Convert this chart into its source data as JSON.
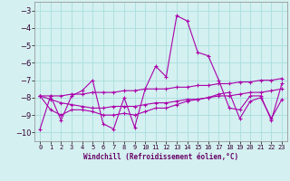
{
  "xlabel": "Windchill (Refroidissement éolien,°C)",
  "background_color": "#d4f0f0",
  "grid_color": "#aadddd",
  "line_color": "#aa00aa",
  "ylim": [
    -10.5,
    -2.5
  ],
  "xlim": [
    -0.5,
    23.5
  ],
  "yticks": [
    -10,
    -9,
    -8,
    -7,
    -6,
    -5,
    -4,
    -3
  ],
  "xticks": [
    0,
    1,
    2,
    3,
    4,
    5,
    6,
    7,
    8,
    9,
    10,
    11,
    12,
    13,
    14,
    15,
    16,
    17,
    18,
    19,
    20,
    21,
    22,
    23
  ],
  "line1": [
    -9.8,
    -7.9,
    -9.3,
    -7.9,
    -7.6,
    -7.0,
    -9.5,
    -9.8,
    -8.0,
    -9.7,
    -7.5,
    -6.2,
    -6.8,
    -3.3,
    -3.6,
    -5.4,
    -5.6,
    -7.0,
    -8.6,
    -8.7,
    -7.9,
    -7.9,
    -9.3,
    -7.2
  ],
  "line2": [
    -7.9,
    -7.9,
    -7.9,
    -7.8,
    -7.8,
    -7.7,
    -7.7,
    -7.7,
    -7.6,
    -7.6,
    -7.5,
    -7.5,
    -7.5,
    -7.4,
    -7.4,
    -7.3,
    -7.3,
    -7.2,
    -7.2,
    -7.1,
    -7.1,
    -7.0,
    -7.0,
    -6.9
  ],
  "line3": [
    -7.9,
    -8.1,
    -8.3,
    -8.4,
    -8.5,
    -8.6,
    -8.6,
    -8.5,
    -8.5,
    -8.5,
    -8.4,
    -8.3,
    -8.3,
    -8.2,
    -8.1,
    -8.1,
    -8.0,
    -7.9,
    -7.9,
    -7.8,
    -7.7,
    -7.7,
    -7.6,
    -7.5
  ],
  "line4": [
    -7.9,
    -8.7,
    -9.0,
    -8.7,
    -8.7,
    -8.8,
    -9.0,
    -9.0,
    -8.9,
    -9.0,
    -8.8,
    -8.6,
    -8.6,
    -8.4,
    -8.2,
    -8.1,
    -8.0,
    -7.8,
    -7.7,
    -9.2,
    -8.2,
    -8.0,
    -9.2,
    -8.1
  ]
}
